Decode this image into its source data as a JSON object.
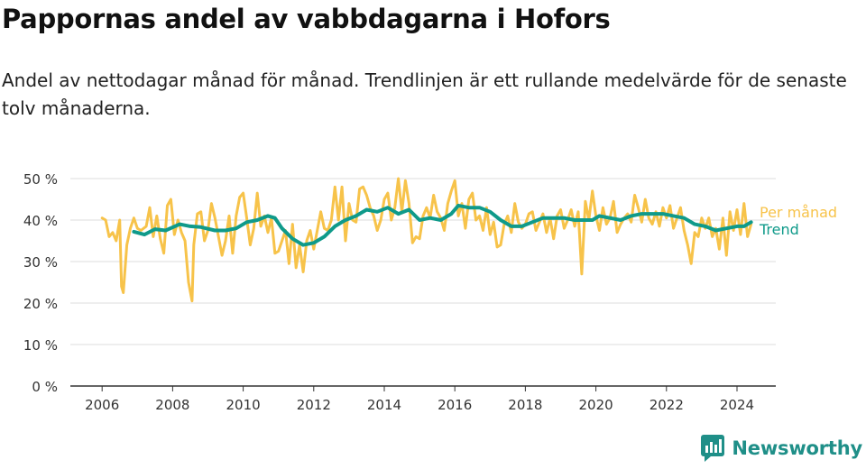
{
  "title": "Pappornas andel av vabbdagarna i Hofors",
  "subtitle": "Andel av nettodagar månad för månad. Trendlinjen är ett rullande medelvärde för de senaste tolv månaderna.",
  "brand": {
    "name": "Newsworthy",
    "color": "#1f8f88"
  },
  "colors": {
    "monthly": "#f7c34a",
    "trend": "#0f9a8a",
    "grid": "#dddddd",
    "axis": "#333333"
  },
  "chart_data": {
    "type": "line",
    "x_unit": "year",
    "ylim": [
      0,
      50
    ],
    "y_ticks": [
      0,
      10,
      20,
      30,
      40,
      50
    ],
    "y_tick_labels": [
      "0 %",
      "10 %",
      "20 %",
      "30 %",
      "40 %",
      "50 %"
    ],
    "x_ticks": [
      2006,
      2008,
      2010,
      2012,
      2014,
      2016,
      2018,
      2020,
      2022,
      2024
    ],
    "x_tick_labels": [
      "2006",
      "2008",
      "2010",
      "2012",
      "2014",
      "2016",
      "2018",
      "2020",
      "2022",
      "2024"
    ],
    "grid": "horizontal",
    "legend": "right, at end of lines",
    "series": [
      {
        "name": "Per månad",
        "color": "#f7c34a",
        "points": [
          [
            2006.0,
            40.5
          ],
          [
            2006.1,
            40.0
          ],
          [
            2006.2,
            36.0
          ],
          [
            2006.3,
            37.0
          ],
          [
            2006.4,
            35.0
          ],
          [
            2006.5,
            40.0
          ],
          [
            2006.55,
            24.0
          ],
          [
            2006.6,
            22.5
          ],
          [
            2006.7,
            34.0
          ],
          [
            2006.8,
            38.0
          ],
          [
            2006.9,
            40.5
          ],
          [
            2007.0,
            38.0
          ],
          [
            2007.1,
            37.5
          ],
          [
            2007.25,
            38.5
          ],
          [
            2007.35,
            43.0
          ],
          [
            2007.45,
            36.0
          ],
          [
            2007.55,
            41.0
          ],
          [
            2007.65,
            35.5
          ],
          [
            2007.75,
            32.0
          ],
          [
            2007.85,
            43.5
          ],
          [
            2007.95,
            45.0
          ],
          [
            2008.05,
            36.5
          ],
          [
            2008.15,
            40.0
          ],
          [
            2008.25,
            37.0
          ],
          [
            2008.35,
            35.0
          ],
          [
            2008.45,
            25.0
          ],
          [
            2008.55,
            20.5
          ],
          [
            2008.6,
            34.0
          ],
          [
            2008.7,
            41.5
          ],
          [
            2008.8,
            42.0
          ],
          [
            2008.9,
            35.0
          ],
          [
            2009.0,
            37.5
          ],
          [
            2009.1,
            44.0
          ],
          [
            2009.2,
            40.5
          ],
          [
            2009.3,
            36.0
          ],
          [
            2009.4,
            31.5
          ],
          [
            2009.5,
            35.0
          ],
          [
            2009.6,
            41.0
          ],
          [
            2009.7,
            32.0
          ],
          [
            2009.8,
            41.0
          ],
          [
            2009.9,
            45.5
          ],
          [
            2010.0,
            46.5
          ],
          [
            2010.1,
            40.5
          ],
          [
            2010.2,
            34.0
          ],
          [
            2010.3,
            38.0
          ],
          [
            2010.4,
            46.5
          ],
          [
            2010.5,
            38.5
          ],
          [
            2010.6,
            41.0
          ],
          [
            2010.7,
            37.0
          ],
          [
            2010.8,
            40.5
          ],
          [
            2010.9,
            32.0
          ],
          [
            2011.0,
            32.5
          ],
          [
            2011.1,
            35.0
          ],
          [
            2011.2,
            37.5
          ],
          [
            2011.3,
            29.5
          ],
          [
            2011.4,
            39.0
          ],
          [
            2011.5,
            28.5
          ],
          [
            2011.6,
            34.0
          ],
          [
            2011.7,
            27.5
          ],
          [
            2011.8,
            35.0
          ],
          [
            2011.9,
            37.5
          ],
          [
            2012.0,
            33.0
          ],
          [
            2012.1,
            37.5
          ],
          [
            2012.2,
            42.0
          ],
          [
            2012.3,
            38.0
          ],
          [
            2012.4,
            37.5
          ],
          [
            2012.5,
            40.0
          ],
          [
            2012.6,
            48.0
          ],
          [
            2012.7,
            40.0
          ],
          [
            2012.8,
            48.0
          ],
          [
            2012.9,
            35.0
          ],
          [
            2013.0,
            44.0
          ],
          [
            2013.1,
            40.0
          ],
          [
            2013.2,
            39.5
          ],
          [
            2013.3,
            47.5
          ],
          [
            2013.4,
            48.0
          ],
          [
            2013.5,
            46.0
          ],
          [
            2013.6,
            43.0
          ],
          [
            2013.7,
            41.0
          ],
          [
            2013.8,
            37.5
          ],
          [
            2013.9,
            40.0
          ],
          [
            2014.0,
            45.0
          ],
          [
            2014.1,
            46.5
          ],
          [
            2014.2,
            40.0
          ],
          [
            2014.3,
            43.0
          ],
          [
            2014.4,
            50.0
          ],
          [
            2014.5,
            42.0
          ],
          [
            2014.6,
            49.5
          ],
          [
            2014.7,
            44.0
          ],
          [
            2014.8,
            34.5
          ],
          [
            2014.9,
            36.0
          ],
          [
            2015.0,
            35.5
          ],
          [
            2015.1,
            41.0
          ],
          [
            2015.2,
            43.0
          ],
          [
            2015.3,
            40.5
          ],
          [
            2015.4,
            46.0
          ],
          [
            2015.5,
            42.0
          ],
          [
            2015.6,
            40.5
          ],
          [
            2015.7,
            37.5
          ],
          [
            2015.8,
            44.0
          ],
          [
            2015.9,
            47.0
          ],
          [
            2016.0,
            49.5
          ],
          [
            2016.1,
            41.0
          ],
          [
            2016.2,
            44.0
          ],
          [
            2016.3,
            38.0
          ],
          [
            2016.4,
            45.0
          ],
          [
            2016.5,
            46.5
          ],
          [
            2016.6,
            40.0
          ],
          [
            2016.7,
            41.0
          ],
          [
            2016.8,
            37.5
          ],
          [
            2016.9,
            43.0
          ],
          [
            2017.0,
            36.5
          ],
          [
            2017.1,
            39.5
          ],
          [
            2017.2,
            33.5
          ],
          [
            2017.3,
            34.0
          ],
          [
            2017.4,
            39.0
          ],
          [
            2017.5,
            41.0
          ],
          [
            2017.6,
            37.0
          ],
          [
            2017.7,
            44.0
          ],
          [
            2017.8,
            39.5
          ],
          [
            2017.9,
            38.0
          ],
          [
            2018.0,
            39.0
          ],
          [
            2018.1,
            41.5
          ],
          [
            2018.2,
            42.0
          ],
          [
            2018.3,
            37.5
          ],
          [
            2018.4,
            39.5
          ],
          [
            2018.5,
            41.5
          ],
          [
            2018.6,
            37.0
          ],
          [
            2018.7,
            40.5
          ],
          [
            2018.8,
            35.5
          ],
          [
            2018.9,
            41.0
          ],
          [
            2019.0,
            42.5
          ],
          [
            2019.1,
            38.0
          ],
          [
            2019.2,
            40.0
          ],
          [
            2019.3,
            42.5
          ],
          [
            2019.4,
            38.5
          ],
          [
            2019.5,
            42.0
          ],
          [
            2019.6,
            27.0
          ],
          [
            2019.7,
            44.5
          ],
          [
            2019.8,
            40.0
          ],
          [
            2019.9,
            47.0
          ],
          [
            2020.0,
            41.0
          ],
          [
            2020.1,
            37.5
          ],
          [
            2020.2,
            43.0
          ],
          [
            2020.3,
            39.0
          ],
          [
            2020.4,
            40.5
          ],
          [
            2020.5,
            44.5
          ],
          [
            2020.6,
            37.0
          ],
          [
            2020.7,
            39.0
          ],
          [
            2020.8,
            40.5
          ],
          [
            2020.9,
            41.5
          ],
          [
            2021.0,
            39.5
          ],
          [
            2021.1,
            46.0
          ],
          [
            2021.2,
            43.0
          ],
          [
            2021.3,
            39.5
          ],
          [
            2021.4,
            45.0
          ],
          [
            2021.5,
            40.5
          ],
          [
            2021.6,
            39.0
          ],
          [
            2021.7,
            42.0
          ],
          [
            2021.8,
            38.5
          ],
          [
            2021.9,
            43.0
          ],
          [
            2022.0,
            40.5
          ],
          [
            2022.1,
            43.5
          ],
          [
            2022.2,
            38.0
          ],
          [
            2022.3,
            40.5
          ],
          [
            2022.4,
            43.0
          ],
          [
            2022.5,
            37.5
          ],
          [
            2022.6,
            34.0
          ],
          [
            2022.7,
            29.5
          ],
          [
            2022.8,
            37.0
          ],
          [
            2022.9,
            36.0
          ],
          [
            2023.0,
            40.5
          ],
          [
            2023.1,
            38.0
          ],
          [
            2023.2,
            40.5
          ],
          [
            2023.3,
            36.0
          ],
          [
            2023.4,
            38.0
          ],
          [
            2023.5,
            33.0
          ],
          [
            2023.6,
            40.5
          ],
          [
            2023.7,
            31.5
          ],
          [
            2023.8,
            42.0
          ],
          [
            2023.9,
            37.5
          ],
          [
            2024.0,
            42.5
          ],
          [
            2024.1,
            36.5
          ],
          [
            2024.2,
            44.0
          ],
          [
            2024.3,
            36.0
          ],
          [
            2024.4,
            39.0
          ]
        ]
      },
      {
        "name": "Trend",
        "color": "#0f9a8a",
        "points": [
          [
            2006.9,
            37.2
          ],
          [
            2007.2,
            36.5
          ],
          [
            2007.5,
            37.8
          ],
          [
            2007.8,
            37.5
          ],
          [
            2008.2,
            39.0
          ],
          [
            2008.5,
            38.5
          ],
          [
            2008.8,
            38.3
          ],
          [
            2009.2,
            37.5
          ],
          [
            2009.5,
            37.5
          ],
          [
            2009.8,
            38.0
          ],
          [
            2010.1,
            39.5
          ],
          [
            2010.4,
            40.0
          ],
          [
            2010.7,
            41.0
          ],
          [
            2010.9,
            40.5
          ],
          [
            2011.1,
            38.0
          ],
          [
            2011.4,
            35.5
          ],
          [
            2011.7,
            34.0
          ],
          [
            2012.0,
            34.5
          ],
          [
            2012.3,
            36.0
          ],
          [
            2012.6,
            38.5
          ],
          [
            2012.9,
            40.0
          ],
          [
            2013.2,
            41.0
          ],
          [
            2013.5,
            42.5
          ],
          [
            2013.8,
            42.0
          ],
          [
            2014.1,
            43.0
          ],
          [
            2014.4,
            41.5
          ],
          [
            2014.7,
            42.5
          ],
          [
            2015.0,
            40.0
          ],
          [
            2015.3,
            40.5
          ],
          [
            2015.6,
            40.0
          ],
          [
            2015.9,
            41.5
          ],
          [
            2016.1,
            43.5
          ],
          [
            2016.4,
            43.0
          ],
          [
            2016.7,
            43.0
          ],
          [
            2017.0,
            42.0
          ],
          [
            2017.3,
            40.0
          ],
          [
            2017.6,
            38.5
          ],
          [
            2017.9,
            38.5
          ],
          [
            2018.2,
            39.5
          ],
          [
            2018.5,
            40.5
          ],
          [
            2018.8,
            40.5
          ],
          [
            2019.1,
            40.5
          ],
          [
            2019.4,
            40.0
          ],
          [
            2019.7,
            40.0
          ],
          [
            2019.9,
            40.0
          ],
          [
            2020.1,
            41.0
          ],
          [
            2020.4,
            40.5
          ],
          [
            2020.7,
            40.0
          ],
          [
            2021.0,
            41.0
          ],
          [
            2021.3,
            41.5
          ],
          [
            2021.6,
            41.5
          ],
          [
            2021.9,
            41.5
          ],
          [
            2022.2,
            41.0
          ],
          [
            2022.5,
            40.5
          ],
          [
            2022.8,
            39.0
          ],
          [
            2023.1,
            38.5
          ],
          [
            2023.4,
            37.5
          ],
          [
            2023.7,
            38.0
          ],
          [
            2024.0,
            38.5
          ],
          [
            2024.2,
            38.5
          ],
          [
            2024.4,
            39.5
          ]
        ]
      }
    ]
  }
}
